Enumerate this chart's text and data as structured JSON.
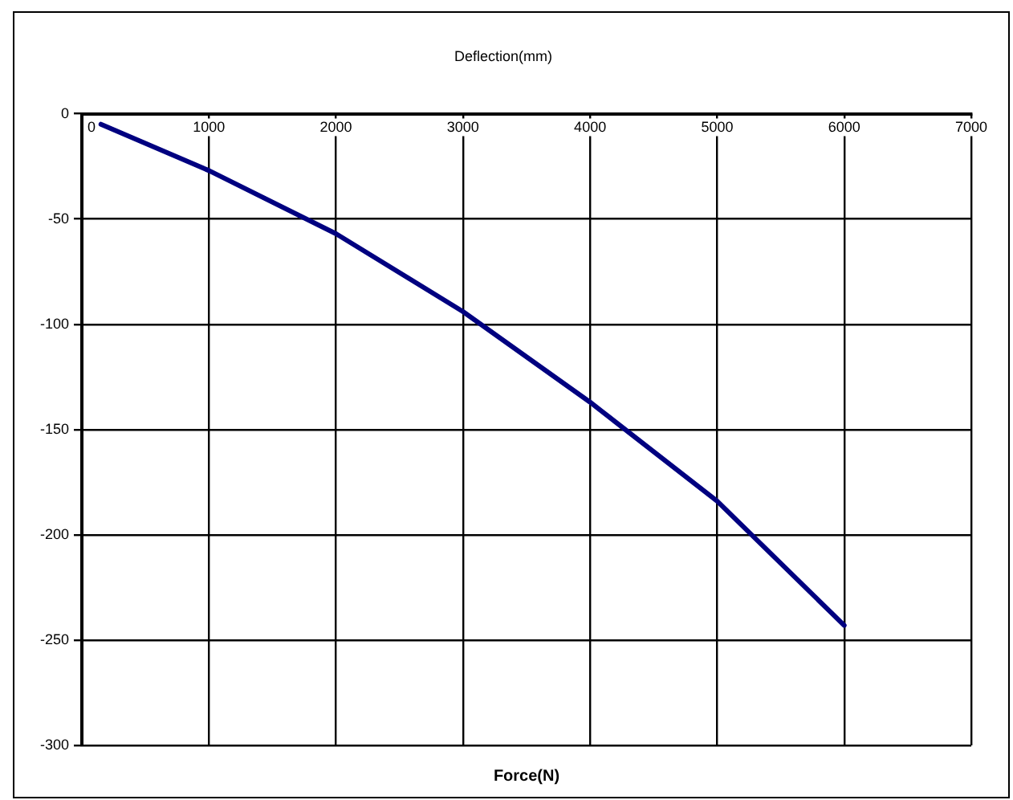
{
  "chart_data": {
    "type": "line",
    "title": "Deflection(mm)",
    "xlabel": "Force(N)",
    "x": [
      150,
      1000,
      2000,
      3000,
      4000,
      5000,
      6000
    ],
    "series": [
      {
        "color": "#000080",
        "values": [
          -5,
          -27,
          -57,
          -94,
          -137,
          -184,
          -243
        ]
      }
    ],
    "xlim": [
      0,
      7000
    ],
    "xticks": [
      0,
      1000,
      2000,
      3000,
      4000,
      5000,
      6000,
      7000
    ],
    "ylim": [
      -300,
      0
    ],
    "yticks": [
      -300,
      -250,
      -200,
      -150,
      -100,
      -50,
      0
    ],
    "grid": true,
    "legend": false,
    "marker": "none",
    "line_style": "solid"
  }
}
